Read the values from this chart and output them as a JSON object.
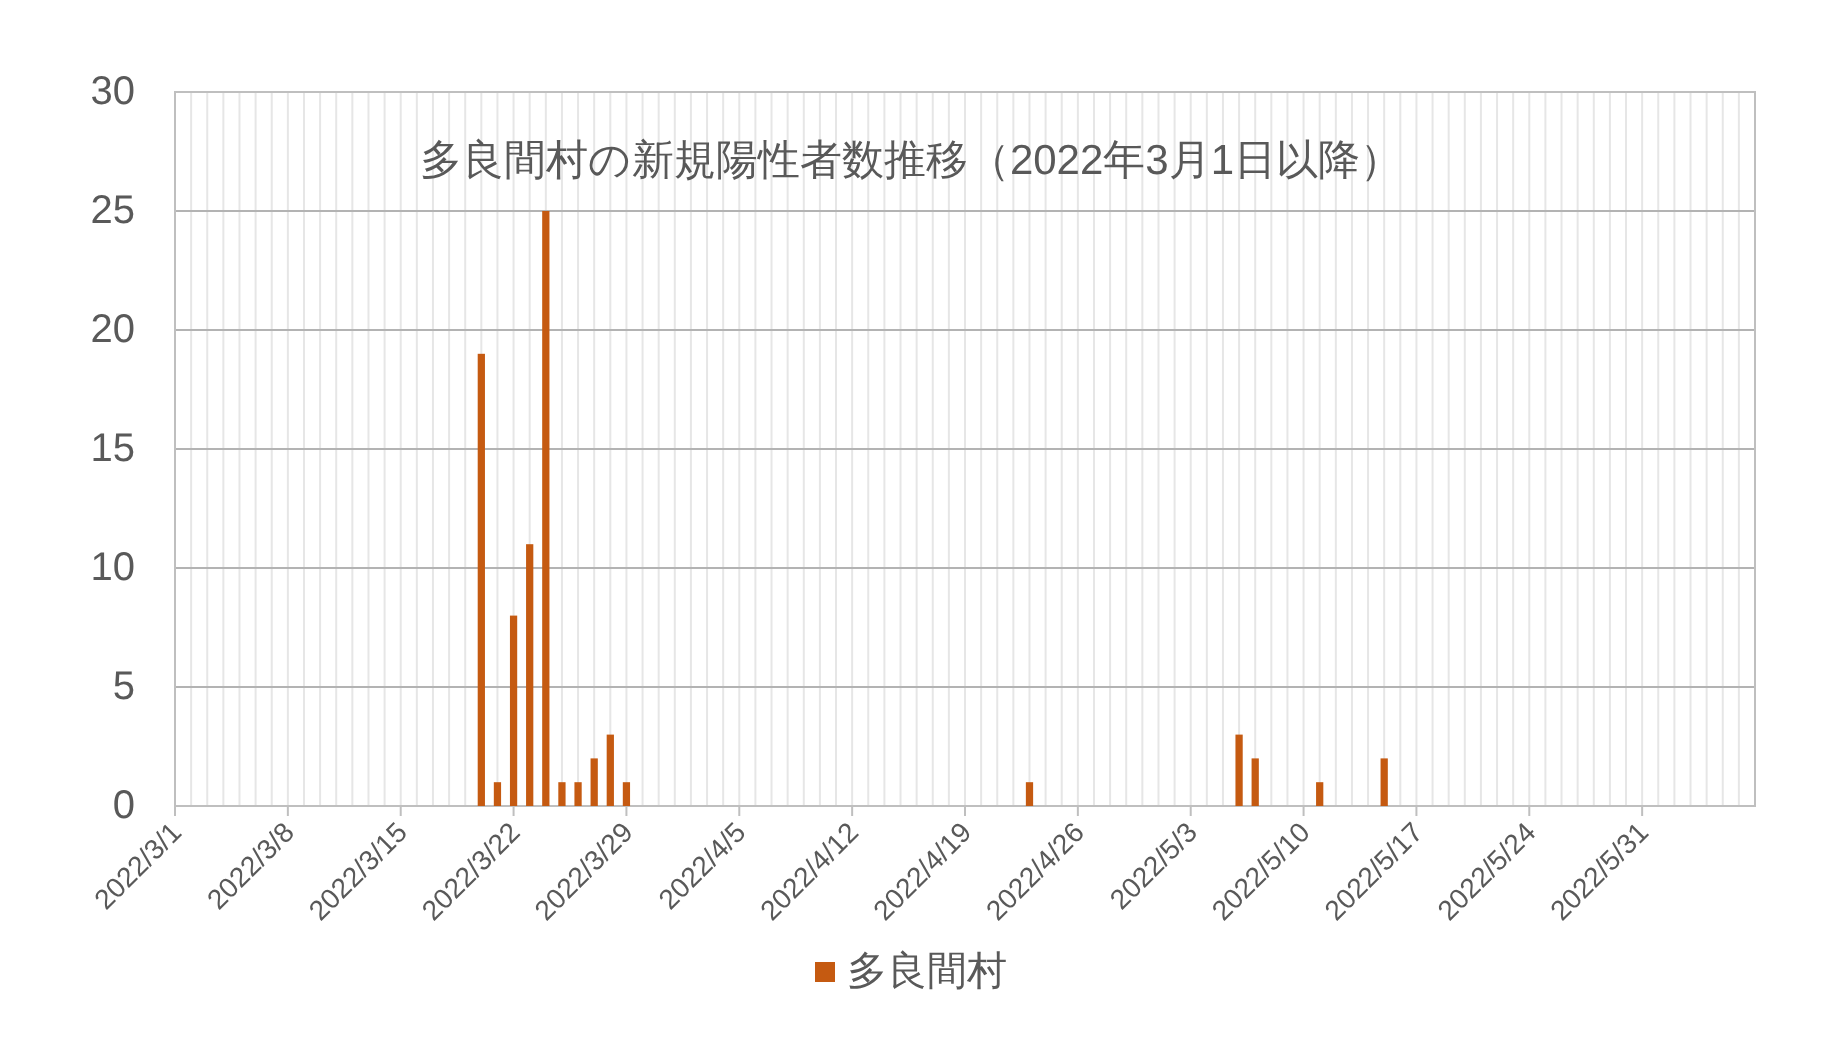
{
  "chart_data": {
    "type": "bar",
    "title": "多良間村の新規陽性者数推移（2022年3月1日以降）",
    "x": [
      "2022-03-20",
      "2022-03-21",
      "2022-03-22",
      "2022-03-23",
      "2022-03-24",
      "2022-03-25",
      "2022-03-26",
      "2022-03-27",
      "2022-03-28",
      "2022-03-29",
      "2022-04-23",
      "2022-05-06",
      "2022-05-07",
      "2022-05-11",
      "2022-05-15"
    ],
    "series": [
      {
        "name": "多良間村",
        "color": "#c55a11",
        "values": [
          19,
          1,
          8,
          11,
          25,
          1,
          1,
          2,
          3,
          1,
          1,
          3,
          2,
          1,
          2
        ]
      }
    ],
    "xlim": [
      "2022-03-01",
      "2022-06-07"
    ],
    "xticks": [
      {
        "value": "2022-03-01",
        "label": "2022/3/1"
      },
      {
        "value": "2022-03-08",
        "label": "2022/3/8"
      },
      {
        "value": "2022-03-15",
        "label": "2022/3/15"
      },
      {
        "value": "2022-03-22",
        "label": "2022/3/22"
      },
      {
        "value": "2022-03-29",
        "label": "2022/3/29"
      },
      {
        "value": "2022-04-05",
        "label": "2022/4/5"
      },
      {
        "value": "2022-04-12",
        "label": "2022/4/12"
      },
      {
        "value": "2022-04-19",
        "label": "2022/4/19"
      },
      {
        "value": "2022-04-26",
        "label": "2022/4/26"
      },
      {
        "value": "2022-05-03",
        "label": "2022/5/3"
      },
      {
        "value": "2022-05-10",
        "label": "2022/5/10"
      },
      {
        "value": "2022-05-17",
        "label": "2022/5/17"
      },
      {
        "value": "2022-05-24",
        "label": "2022/5/24"
      },
      {
        "value": "2022-05-31",
        "label": "2022/5/31"
      }
    ],
    "ylim": [
      0,
      30
    ],
    "yticks": [
      0,
      5,
      10,
      15,
      20,
      25,
      30
    ],
    "grid": true,
    "legend": "bottom"
  }
}
